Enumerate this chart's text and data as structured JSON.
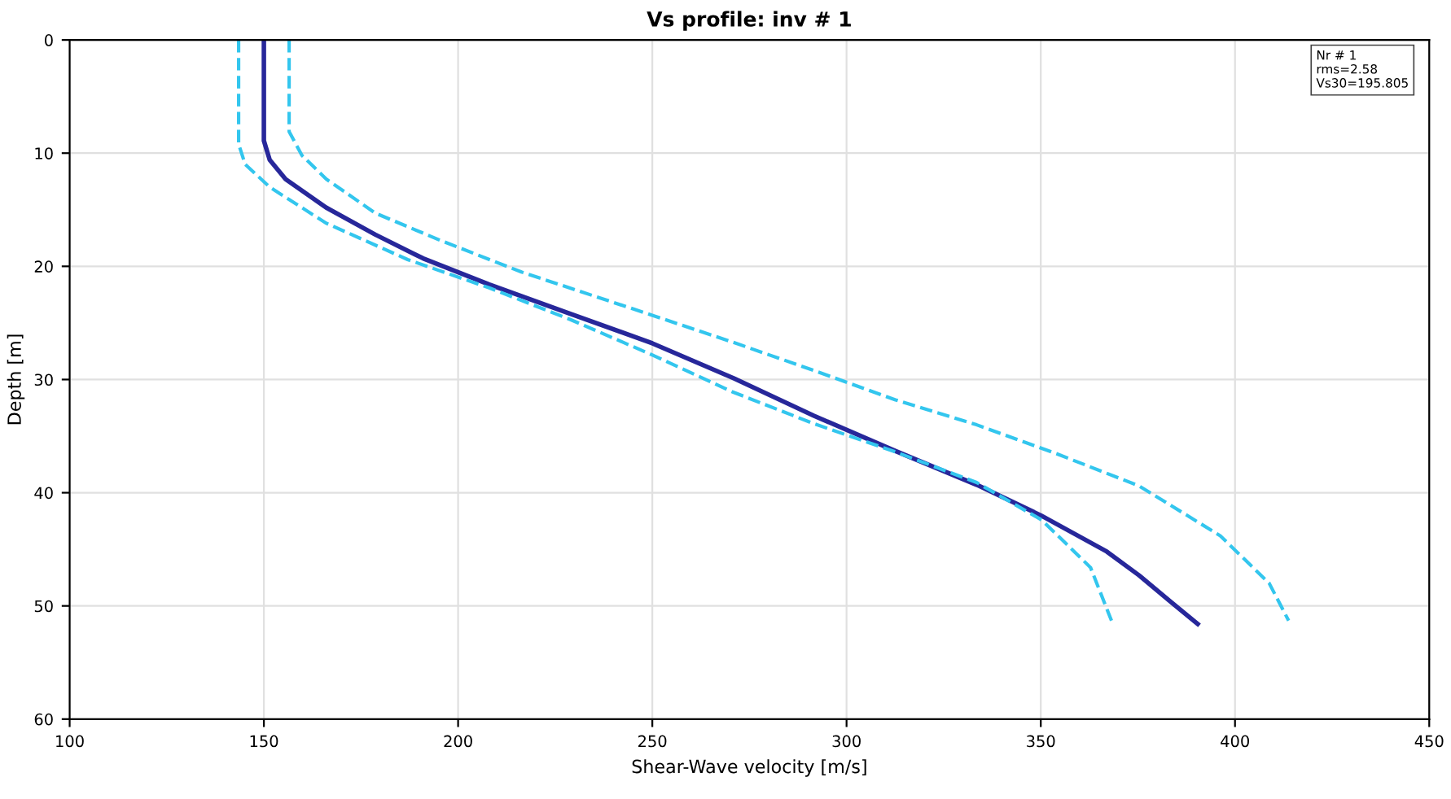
{
  "chart_data": {
    "type": "line",
    "title": "Vs profile: inv # 1",
    "xlabel": "Shear-Wave velocity [m/s]",
    "ylabel": "Depth [m]",
    "series": [
      {
        "color": "#27279a",
        "line_style": "solid",
        "x": [
          150,
          150,
          151.5,
          155.6,
          166,
          178.7,
          191,
          208,
          229,
          250,
          271,
          291.6,
          312.5,
          333.5,
          350,
          367,
          375.3,
          383.7,
          390.4
        ],
        "values": [
          0,
          8.9,
          10.6,
          12.3,
          14.8,
          17.2,
          19.3,
          21.6,
          24.2,
          26.8,
          29.9,
          33.2,
          36.3,
          39.3,
          42,
          45.2,
          47.3,
          49.7,
          51.6
        ]
      },
      {
        "color": "#33c6ee",
        "line_style": "dashed",
        "x": [
          156.5,
          156.5,
          159.8,
          166.1,
          178.7,
          195.4,
          216.3,
          249.8,
          270.7,
          291.6,
          312.6,
          333.5,
          354.4,
          375.3,
          396.2,
          408.8,
          413.8
        ],
        "values": [
          0,
          8.1,
          10.2,
          12.3,
          15.3,
          17.7,
          20.5,
          24.3,
          26.7,
          29.2,
          31.8,
          34,
          36.6,
          39.4,
          43.8,
          48,
          51.3
        ]
      },
      {
        "color": "#33c6ee",
        "line_style": "dashed",
        "x": [
          143.5,
          143.5,
          145.2,
          151.5,
          166.1,
          187,
          208,
          228.9,
          249.8,
          270.7,
          291.6,
          312.6,
          333.5,
          350.2,
          362.8,
          368.2
        ],
        "values": [
          0,
          9.2,
          11,
          13,
          16.2,
          19.4,
          21.9,
          24.7,
          27.8,
          31.1,
          33.9,
          36.4,
          39.1,
          42.4,
          46.6,
          51.3
        ]
      }
    ],
    "xlim": [
      100,
      450
    ],
    "xticks": [
      100,
      150,
      200,
      250,
      300,
      350,
      400,
      450
    ],
    "ylim": [
      60,
      0
    ],
    "yticks": [
      0,
      10,
      20,
      30,
      40,
      50,
      60
    ],
    "grid": true,
    "annotations": [
      "Nr # 1",
      "rms=2.58",
      "Vs30=195.805"
    ]
  }
}
